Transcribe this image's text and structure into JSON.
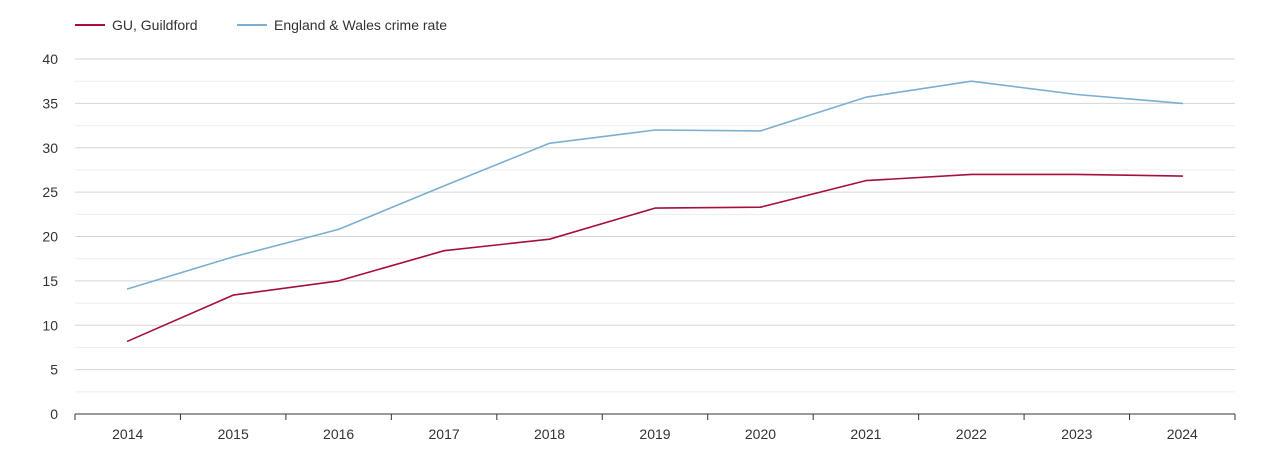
{
  "chart_data": {
    "type": "line",
    "title": "",
    "xlabel": "",
    "ylabel": "",
    "categories": [
      "2014",
      "2015",
      "2016",
      "2017",
      "2018",
      "2019",
      "2020",
      "2021",
      "2022",
      "2023",
      "2024"
    ],
    "ylim": [
      0,
      40
    ],
    "yticks": [
      0,
      5,
      10,
      15,
      20,
      25,
      30,
      35,
      40
    ],
    "minor_gridlines": [
      2.5,
      7.5,
      12.5,
      17.5,
      22.5,
      27.5,
      32.5,
      37.5
    ],
    "grid": true,
    "legend_position": "top-left",
    "series": [
      {
        "name": "GU, Guildford",
        "color": "#a50f3a",
        "values": [
          8.2,
          13.4,
          15.0,
          18.4,
          19.7,
          23.2,
          23.3,
          26.3,
          27.0,
          27.0,
          26.8
        ]
      },
      {
        "name": "England & Wales crime rate",
        "color": "#7bafcf",
        "values": [
          14.1,
          17.7,
          20.8,
          25.7,
          30.5,
          32.0,
          31.9,
          35.7,
          37.5,
          36.0,
          35.0
        ]
      }
    ]
  }
}
